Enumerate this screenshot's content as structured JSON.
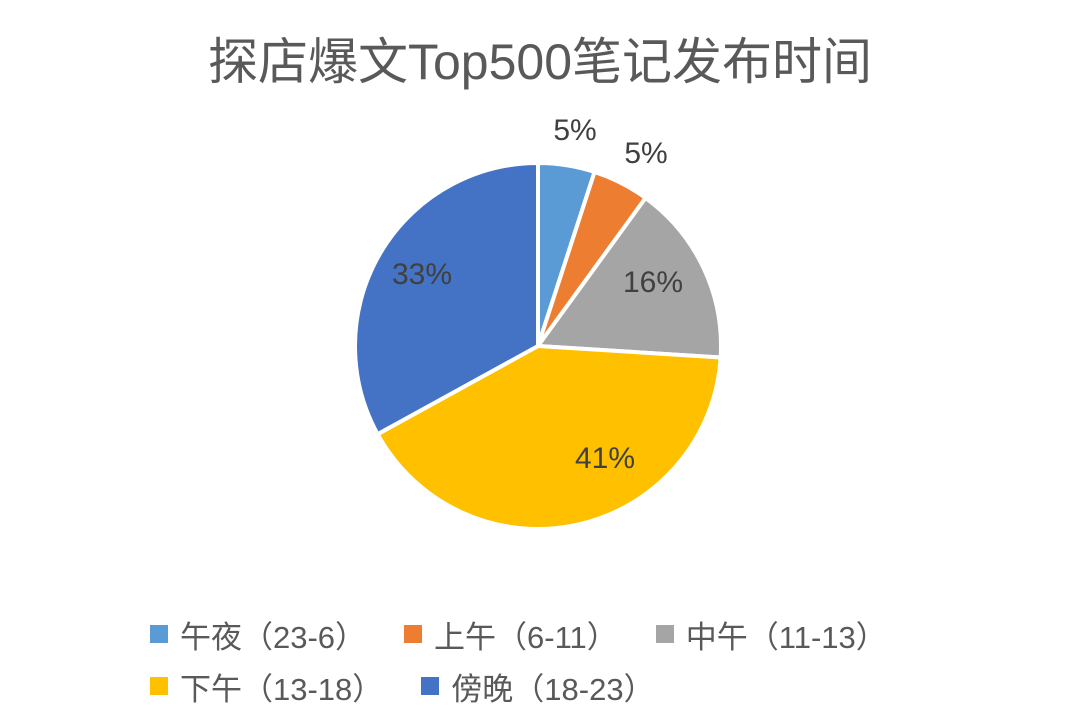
{
  "chart_data": {
    "type": "pie",
    "title": "探店爆文Top500笔记发布时间",
    "categories": [
      "午夜（23-6）",
      "上午（6-11）",
      "中午（11-13）",
      "下午（13-18）",
      "傍晚（18-23）"
    ],
    "values": [
      5,
      5,
      16,
      41,
      33
    ],
    "labels": [
      "5%",
      "5%",
      "16%",
      "41%",
      "33%"
    ],
    "colors": [
      "#5B9BD5",
      "#ED7D31",
      "#A5A5A5",
      "#FFC000",
      "#4472C4"
    ],
    "start_angle": "12 o'clock, clockwise",
    "legend_position": "bottom"
  },
  "legend": {
    "items": [
      {
        "label": "午夜（23-6）",
        "color": "#5B9BD5"
      },
      {
        "label": "上午（6-11）",
        "color": "#ED7D31"
      },
      {
        "label": "中午（11-13）",
        "color": "#A5A5A5"
      },
      {
        "label": "下午（13-18）",
        "color": "#FFC000"
      },
      {
        "label": "傍晚（18-23）",
        "color": "#4472C4"
      }
    ]
  }
}
